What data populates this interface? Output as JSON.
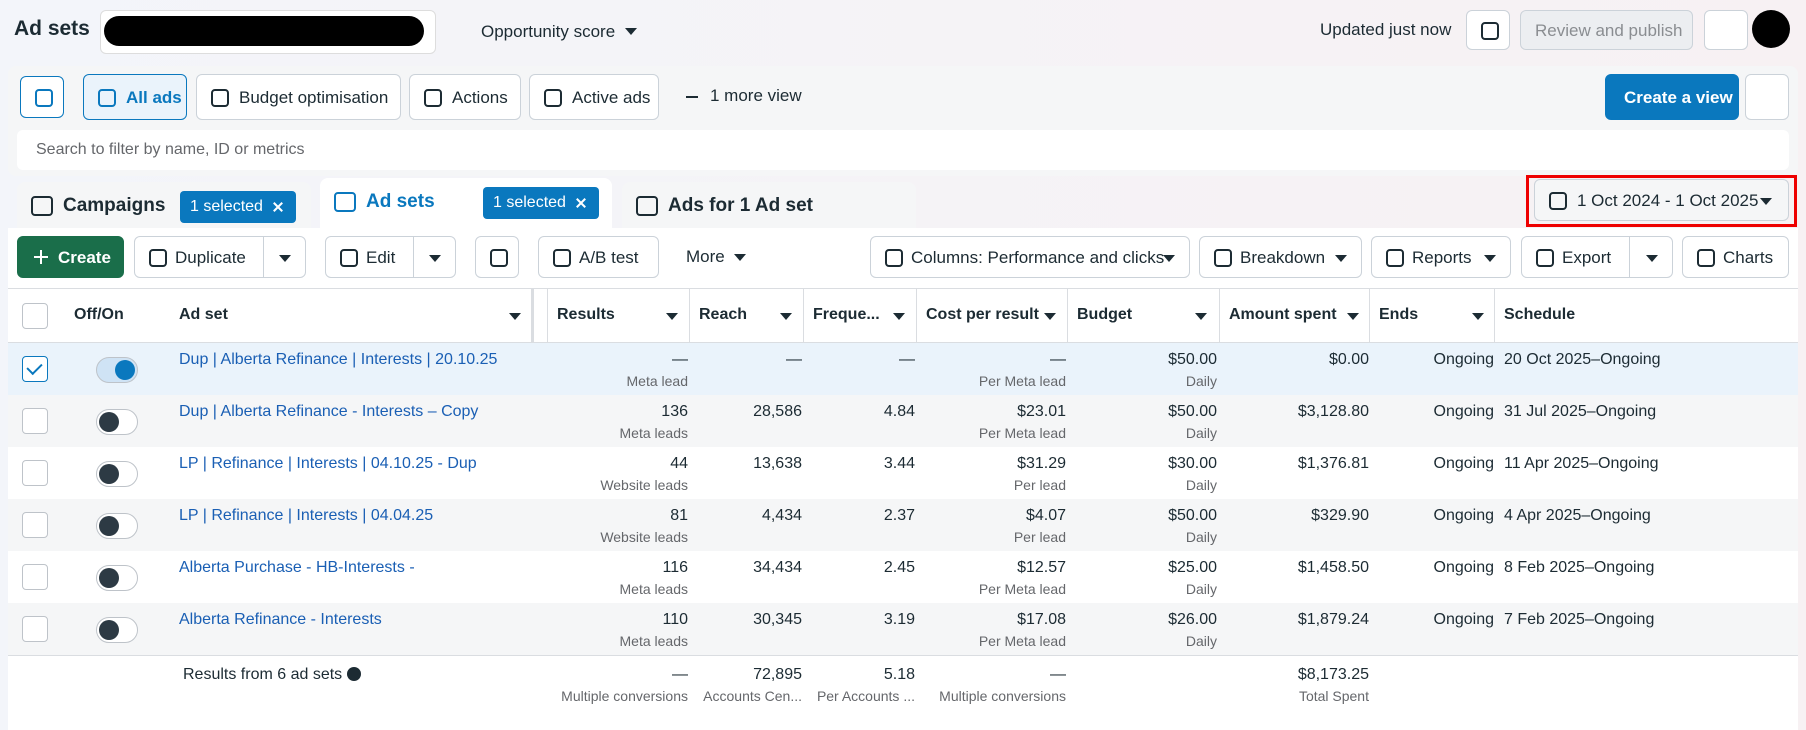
{
  "header": {
    "title": "Ad sets",
    "opportunity": "Opportunity score",
    "updated": "Updated just now",
    "review": "Review and publish"
  },
  "toolbar": {
    "views": [
      "All ads",
      "Budget optimisation",
      "Actions",
      "Active ads"
    ],
    "more_view": "1 more view",
    "create_view": "Create a view",
    "search": "Search to filter by name, ID or metrics"
  },
  "tabs": [
    {
      "label": "Campaigns",
      "badge": "1 selected"
    },
    {
      "label": "Ad sets",
      "badge": "1 selected"
    },
    {
      "label": "Ads for 1 Ad set"
    }
  ],
  "date_range": "1 Oct 2024 - 1 Oct 2025",
  "actions": {
    "create": "Create",
    "duplicate": "Duplicate",
    "edit": "Edit",
    "ab_test": "A/B test",
    "more": "More",
    "columns": "Columns: Performance and clicks",
    "breakdown": "Breakdown",
    "reports": "Reports",
    "export": "Export",
    "charts": "Charts"
  },
  "table": {
    "columns": [
      "Off/On",
      "Ad set",
      "Results",
      "Reach",
      "Freque...",
      "Cost per result",
      "Budget",
      "Amount spent",
      "Ends",
      "Schedule"
    ],
    "rows": [
      {
        "selected": true,
        "on": true,
        "name": "Dup | Alberta Refinance | Interests | 20.10.25",
        "results": "—",
        "results_sub": "Meta lead",
        "reach": "—",
        "frequency": "—",
        "cost": "—",
        "cost_sub": "Per Meta lead",
        "budget": "$50.00",
        "budget_sub": "Daily",
        "spent": "$0.00",
        "ends": "Ongoing",
        "schedule": "20 Oct 2025–Ongoing"
      },
      {
        "selected": false,
        "on": false,
        "name": "Dup | Alberta Refinance - Interests – Copy",
        "results": "136",
        "results_sub": "Meta leads",
        "reach": "28,586",
        "frequency": "4.84",
        "cost": "$23.01",
        "cost_sub": "Per Meta lead",
        "budget": "$50.00",
        "budget_sub": "Daily",
        "spent": "$3,128.80",
        "ends": "Ongoing",
        "schedule": "31 Jul 2025–Ongoing"
      },
      {
        "selected": false,
        "on": false,
        "name": "LP | Refinance | Interests | 04.10.25 - Dup",
        "results": "44",
        "results_sub": "Website leads",
        "reach": "13,638",
        "frequency": "3.44",
        "cost": "$31.29",
        "cost_sub": "Per lead",
        "budget": "$30.00",
        "budget_sub": "Daily",
        "spent": "$1,376.81",
        "ends": "Ongoing",
        "schedule": "11 Apr 2025–Ongoing"
      },
      {
        "selected": false,
        "on": false,
        "name": "LP | Refinance | Interests | 04.04.25",
        "results": "81",
        "results_sub": "Website leads",
        "reach": "4,434",
        "frequency": "2.37",
        "cost": "$4.07",
        "cost_sub": "Per lead",
        "budget": "$50.00",
        "budget_sub": "Daily",
        "spent": "$329.90",
        "ends": "Ongoing",
        "schedule": "4 Apr 2025–Ongoing"
      },
      {
        "selected": false,
        "on": false,
        "name": "Alberta Purchase - HB-Interests -",
        "results": "116",
        "results_sub": "Meta leads",
        "reach": "34,434",
        "frequency": "2.45",
        "cost": "$12.57",
        "cost_sub": "Per Meta lead",
        "budget": "$25.00",
        "budget_sub": "Daily",
        "spent": "$1,458.50",
        "ends": "Ongoing",
        "schedule": "8 Feb 2025–Ongoing"
      },
      {
        "selected": false,
        "on": false,
        "name": "Alberta Refinance - Interests",
        "results": "110",
        "results_sub": "Meta leads",
        "reach": "30,345",
        "frequency": "3.19",
        "cost": "$17.08",
        "cost_sub": "Per Meta lead",
        "budget": "$26.00",
        "budget_sub": "Daily",
        "spent": "$1,879.24",
        "ends": "Ongoing",
        "schedule": "7 Feb 2025–Ongoing"
      }
    ],
    "summary": {
      "label": "Results from 6 ad sets",
      "results": "—",
      "results_sub": "Multiple conversions",
      "reach": "72,895",
      "reach_sub": "Accounts Cen...",
      "frequency": "5.18",
      "frequency_sub": "Per Accounts ...",
      "cost": "—",
      "cost_sub": "Multiple conversions",
      "spent": "$8,173.25",
      "spent_sub": "Total Spent"
    }
  }
}
